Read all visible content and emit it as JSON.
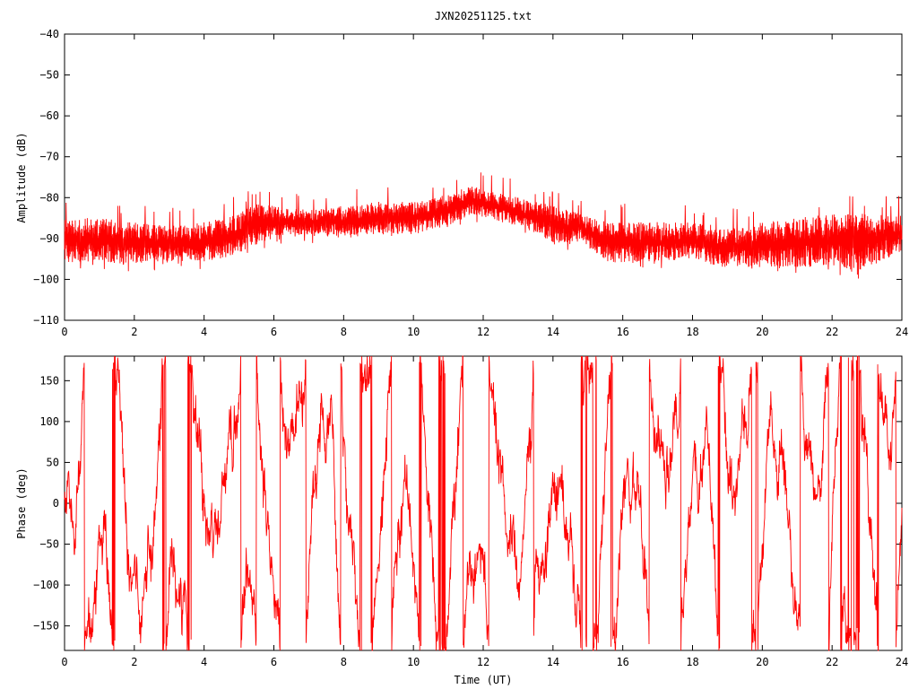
{
  "chart_data": [
    {
      "type": "line",
      "title": "JXN20251125.txt",
      "xlabel": "",
      "ylabel": "Amplitude (dB)",
      "xlim": [
        0,
        24
      ],
      "ylim": [
        -110,
        -40
      ],
      "xticks": [
        0,
        2,
        4,
        6,
        8,
        10,
        12,
        14,
        16,
        18,
        20,
        22,
        24
      ],
      "yticks": [
        -110,
        -100,
        -90,
        -80,
        -70,
        -60,
        -50,
        -40
      ],
      "xtick_labels": [
        "0",
        "2",
        "4",
        "6",
        "8",
        "10",
        "12",
        "14",
        "16",
        "18",
        "20",
        "22",
        "24"
      ],
      "ytick_labels": [
        "−110",
        "−100",
        "−90",
        "−80",
        "−70",
        "−60",
        "−50",
        "−40"
      ],
      "grid": false,
      "series_color": "#ff0000",
      "envelope": {
        "x": [
          0,
          1,
          1.4,
          2,
          3,
          4,
          5,
          5.5,
          6,
          7,
          8,
          9,
          10,
          11,
          11.7,
          12,
          13,
          14,
          14.8,
          15.6,
          16,
          17,
          18,
          18.8,
          19.5,
          20,
          21,
          22,
          22.8,
          23,
          24
        ],
        "upper": [
          -84,
          -85,
          -85,
          -86,
          -87,
          -86,
          -84,
          -81,
          -82,
          -83,
          -82,
          -81,
          -81,
          -79,
          -77,
          -78,
          -80,
          -82,
          -84,
          -86,
          -86,
          -86,
          -86,
          -87,
          -87,
          -86,
          -85,
          -84,
          -83,
          -84,
          -84
        ],
        "lower": [
          -96,
          -96,
          -96,
          -96,
          -96,
          -96,
          -94,
          -92,
          -90,
          -89,
          -90,
          -89,
          -89,
          -87,
          -84,
          -85,
          -87,
          -91,
          -91,
          -96,
          -96,
          -96,
          -95,
          -97,
          -97,
          -97,
          -97,
          -97,
          -98,
          -97,
          -94
        ]
      }
    },
    {
      "type": "line",
      "title": "",
      "xlabel": "Time (UT)",
      "ylabel": "Phase (deg)",
      "xlim": [
        0,
        24
      ],
      "ylim": [
        -180,
        180
      ],
      "xticks": [
        0,
        2,
        4,
        6,
        8,
        10,
        12,
        14,
        16,
        18,
        20,
        22,
        24
      ],
      "yticks": [
        -150,
        -100,
        -50,
        0,
        50,
        100,
        150
      ],
      "xtick_labels": [
        "0",
        "2",
        "4",
        "6",
        "8",
        "10",
        "12",
        "14",
        "16",
        "18",
        "20",
        "22",
        "24"
      ],
      "ytick_labels": [
        "−150",
        "−100",
        "−50",
        "0",
        "50",
        "100",
        "150"
      ],
      "grid": false,
      "series_color": "#ff0000"
    }
  ]
}
